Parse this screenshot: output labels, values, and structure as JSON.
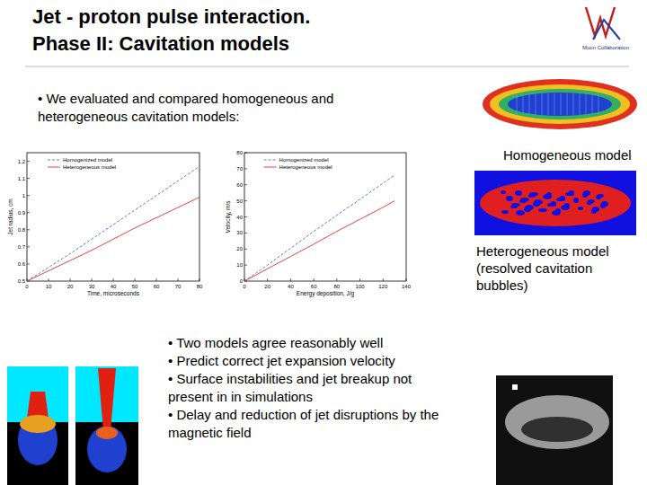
{
  "title": [
    "Jet - proton pulse interaction.",
    "Phase II: Cavitation models"
  ],
  "logo_text": "Muon Collaboration",
  "intro": "• We evaluated and compared homogeneous and heterogeneous cavitation models:",
  "image_labels": [
    "Homogeneous model",
    "Heterogeneous model (resolved cavitation bubbles)"
  ],
  "bullets": [
    "• Two models agree reasonably well",
    "• Predict correct jet expansion velocity",
    "• Surface instabilities and jet breakup not present in in simulations",
    "• Delay and reduction of jet disruptions by the magnetic field"
  ],
  "chart_data": [
    {
      "type": "line",
      "x_label": "Time, microseconds",
      "y_label": "Jet radius, cm",
      "x": [
        0,
        10,
        20,
        30,
        40,
        50,
        60,
        70,
        80
      ],
      "series": [
        {
          "name": "Homogenized model",
          "color": "#4a6fe0",
          "line_style": "dashed",
          "values": [
            0.5,
            0.58,
            0.66,
            0.745,
            0.83,
            0.915,
            1.0,
            1.085,
            1.17
          ]
        },
        {
          "name": "Heterogeneous model",
          "color": "#e03030",
          "line_style": "solid",
          "values": [
            0.5,
            0.56,
            0.62,
            0.68,
            0.745,
            0.81,
            0.87,
            0.93,
            0.99
          ]
        }
      ],
      "xlim": [
        0,
        80
      ],
      "xticks": [
        0,
        10,
        20,
        30,
        40,
        50,
        60,
        70,
        80
      ],
      "ylim": [
        0.5,
        1.25
      ],
      "yticks": [
        0.5,
        0.6,
        0.7,
        0.8,
        0.9,
        1,
        1.1,
        1.2
      ],
      "grid": false,
      "legend": "upper left"
    },
    {
      "type": "line",
      "x_label": "Energy deposition, J/g",
      "y_label": "Velocity, m/s",
      "x": [
        0,
        20,
        40,
        60,
        80,
        100,
        120,
        130
      ],
      "series": [
        {
          "name": "Homogenized model",
          "color": "#4a6fe0",
          "line_style": "dashed",
          "values": [
            0,
            10,
            20.5,
            31,
            41,
            51,
            61,
            66
          ]
        },
        {
          "name": "Heterogeneous model",
          "color": "#e03030",
          "line_style": "solid",
          "values": [
            0,
            7.7,
            15.4,
            23,
            31,
            38.5,
            46,
            50
          ]
        }
      ],
      "xlim": [
        0,
        140
      ],
      "xticks": [
        0,
        20,
        40,
        60,
        80,
        100,
        120,
        140
      ],
      "ylim": [
        0,
        80
      ],
      "yticks": [
        0,
        10,
        20,
        30,
        40,
        50,
        60,
        70,
        80
      ],
      "grid": false,
      "legend": "upper left"
    }
  ]
}
